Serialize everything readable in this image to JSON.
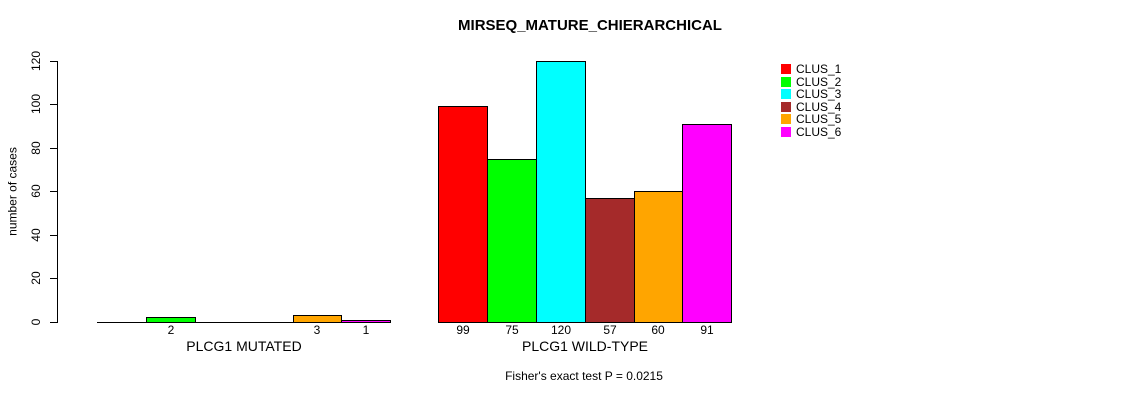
{
  "chart_data": {
    "type": "bar",
    "title": "MIRSEQ_MATURE_CHIERARCHICAL",
    "ylabel": "number of cases",
    "ylim": [
      0,
      120
    ],
    "yticks": [
      0,
      20,
      40,
      60,
      80,
      100,
      120
    ],
    "grid": false,
    "legend_position": "right",
    "categories": [
      "PLCG1 MUTATED",
      "PLCG1 WILD-TYPE"
    ],
    "series": [
      {
        "name": "CLUS_1",
        "color": "#FF0000",
        "values": [
          0,
          99
        ]
      },
      {
        "name": "CLUS_2",
        "color": "#00FF00",
        "values": [
          2,
          75
        ]
      },
      {
        "name": "CLUS_3",
        "color": "#00FFFF",
        "values": [
          0,
          120
        ]
      },
      {
        "name": "CLUS_4",
        "color": "#A52A2A",
        "values": [
          0,
          57
        ]
      },
      {
        "name": "CLUS_5",
        "color": "#FFA500",
        "values": [
          3,
          60
        ]
      },
      {
        "name": "CLUS_6",
        "color": "#FF00FF",
        "values": [
          1,
          91
        ]
      }
    ],
    "bar_value_labels": [
      [
        "",
        "2",
        "",
        "",
        "3",
        "1"
      ],
      [
        "99",
        "75",
        "120",
        "57",
        "60",
        "91"
      ]
    ],
    "annotation": "Fisher's exact test P = 0.0215"
  }
}
